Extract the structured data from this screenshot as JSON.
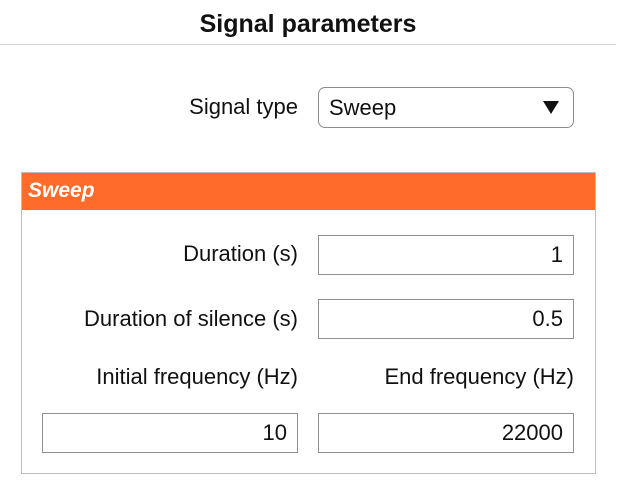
{
  "title": "Signal parameters",
  "signal_type": {
    "label": "Signal type",
    "selected": "Sweep",
    "arrow_icon": "triangle-down-icon"
  },
  "panel": {
    "title": "Sweep",
    "header_color": "#ff6b2b",
    "duration": {
      "label": "Duration (s)",
      "value": "1"
    },
    "silence": {
      "label": "Duration of silence (s)",
      "value": "0.5"
    },
    "initial_frequency": {
      "label": "Initial frequency (Hz)",
      "value": "10"
    },
    "end_frequency": {
      "label": "End frequency (Hz)",
      "value": "22000"
    }
  }
}
